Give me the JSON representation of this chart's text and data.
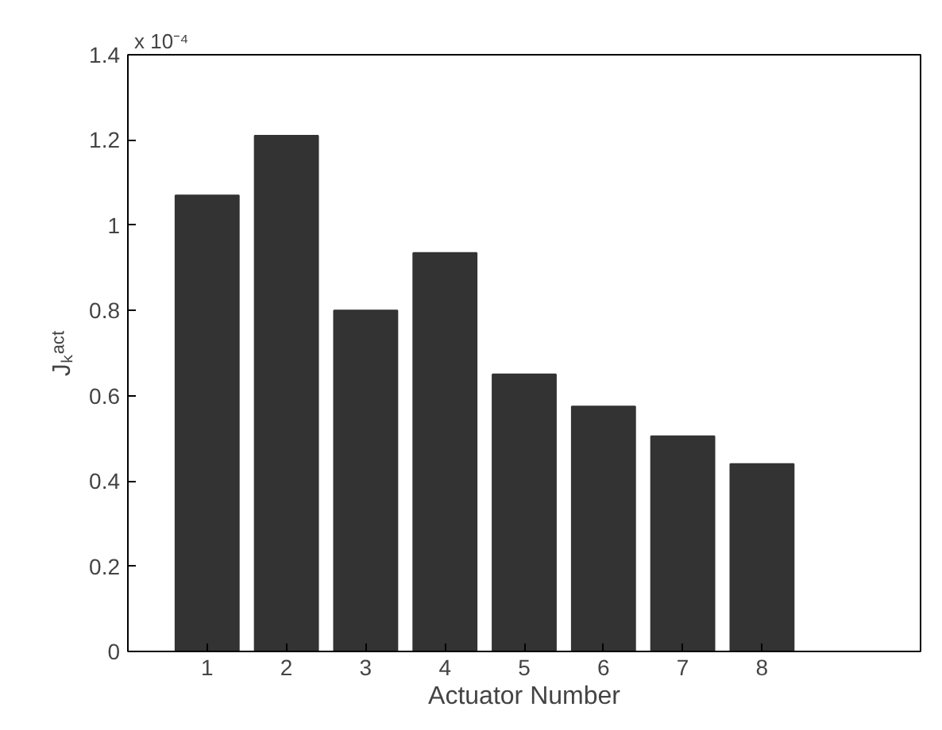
{
  "chart_data": {
    "type": "bar",
    "x": [
      1,
      2,
      3,
      4,
      5,
      6,
      7,
      8
    ],
    "values": [
      1.07,
      1.21,
      0.8,
      0.935,
      0.65,
      0.575,
      0.505,
      0.44
    ],
    "color": "#333333",
    "xlabel": "Actuator Number",
    "ylabel": "Jₖᵃᶜᵗ",
    "annotations": [
      "x 10⁻⁴"
    ],
    "xlim": [
      0,
      10
    ],
    "xticks": [
      1,
      2,
      3,
      4,
      5,
      6,
      7,
      8
    ],
    "ylim": [
      0,
      1.4
    ],
    "yticks": [
      0,
      0.2,
      0.4,
      0.6,
      0.8,
      1,
      1.2,
      1.4
    ],
    "grid": false
  }
}
